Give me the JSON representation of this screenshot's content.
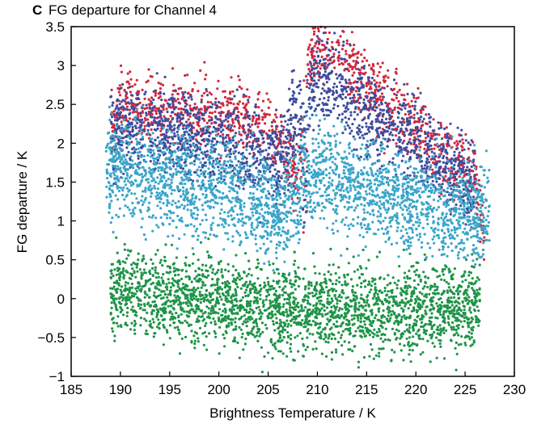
{
  "panel": {
    "letter": "c",
    "title": "FG departure for Channel 4"
  },
  "chart_data": {
    "type": "scatter",
    "title": "FG departure for Channel 4",
    "xlabel": "Brightness Temperature / K",
    "ylabel": "FG departure / K",
    "xlim": [
      185,
      230
    ],
    "ylim": [
      -1,
      3.5
    ],
    "xticks": [
      185,
      190,
      195,
      200,
      205,
      210,
      215,
      220,
      225,
      230
    ],
    "yticks": [
      -1,
      -0.5,
      0,
      0.5,
      1,
      1.5,
      2,
      2.5,
      3,
      3.5
    ],
    "xtick_labels": [
      "185",
      "190",
      "195",
      "200",
      "205",
      "210",
      "215",
      "220",
      "225",
      "230"
    ],
    "ytick_labels": [
      "−1",
      "−0.5",
      "0",
      "0.5",
      "1",
      "1.5",
      "2",
      "2.5",
      "3",
      "3.5"
    ],
    "grid": false,
    "legend": "none",
    "series": [
      {
        "color": "#d2283c",
        "points_estimated": [
          [
            189.0,
            2.25
          ],
          [
            190.0,
            2.45
          ],
          [
            192.0,
            2.45
          ],
          [
            195.0,
            2.4
          ],
          [
            198.0,
            2.4
          ],
          [
            201.0,
            2.35
          ],
          [
            204.0,
            2.25
          ],
          [
            206.0,
            2.05
          ],
          [
            208.0,
            1.55
          ],
          [
            209.0,
            3.0
          ],
          [
            210.0,
            3.25
          ],
          [
            211.0,
            3.3
          ],
          [
            212.0,
            3.2
          ],
          [
            214.0,
            2.9
          ],
          [
            216.0,
            2.65
          ],
          [
            218.0,
            2.45
          ],
          [
            220.0,
            2.2
          ],
          [
            222.0,
            1.95
          ],
          [
            224.0,
            1.75
          ],
          [
            226.0,
            1.55
          ],
          [
            227.0,
            0.6
          ]
        ]
      },
      {
        "color": "#3d4c9e",
        "points_estimated": [
          [
            189.0,
            2.1
          ],
          [
            191.0,
            2.2
          ],
          [
            194.0,
            2.15
          ],
          [
            197.0,
            2.1
          ],
          [
            200.0,
            2.05
          ],
          [
            203.0,
            1.95
          ],
          [
            206.0,
            1.75
          ],
          [
            209.0,
            2.55
          ],
          [
            210.0,
            2.85
          ],
          [
            212.0,
            2.75
          ],
          [
            214.0,
            2.5
          ],
          [
            216.0,
            2.3
          ],
          [
            218.0,
            2.15
          ],
          [
            220.0,
            2.0
          ],
          [
            222.0,
            1.8
          ],
          [
            224.0,
            1.6
          ],
          [
            226.0,
            1.45
          ]
        ]
      },
      {
        "color": "#3aa6c9",
        "points_estimated": [
          [
            188.5,
            1.7
          ],
          [
            190.0,
            1.75
          ],
          [
            192.0,
            1.6
          ],
          [
            194.0,
            1.55
          ],
          [
            196.0,
            1.5
          ],
          [
            198.0,
            1.45
          ],
          [
            200.0,
            1.45
          ],
          [
            202.0,
            1.35
          ],
          [
            204.0,
            1.2
          ],
          [
            206.0,
            1.1
          ],
          [
            208.0,
            1.3
          ],
          [
            209.0,
            1.6
          ],
          [
            211.0,
            1.6
          ],
          [
            214.0,
            1.45
          ],
          [
            217.0,
            1.35
          ],
          [
            220.0,
            1.25
          ],
          [
            223.0,
            1.15
          ],
          [
            226.0,
            1.05
          ],
          [
            227.5,
            1.2
          ]
        ]
      },
      {
        "color": "#1e9448",
        "points_estimated": [
          [
            189.0,
            0.1
          ],
          [
            191.0,
            0.1
          ],
          [
            193.0,
            0.05
          ],
          [
            195.0,
            0.0
          ],
          [
            197.0,
            0.0
          ],
          [
            199.0,
            0.0
          ],
          [
            201.0,
            -0.05
          ],
          [
            203.0,
            -0.05
          ],
          [
            205.0,
            -0.1
          ],
          [
            207.0,
            -0.2
          ],
          [
            209.0,
            -0.1
          ],
          [
            211.0,
            -0.1
          ],
          [
            213.0,
            -0.1
          ],
          [
            215.0,
            -0.15
          ],
          [
            217.0,
            -0.15
          ],
          [
            219.0,
            -0.15
          ],
          [
            221.0,
            -0.1
          ],
          [
            223.0,
            -0.1
          ],
          [
            225.0,
            -0.1
          ],
          [
            226.5,
            0.0
          ]
        ]
      }
    ]
  }
}
